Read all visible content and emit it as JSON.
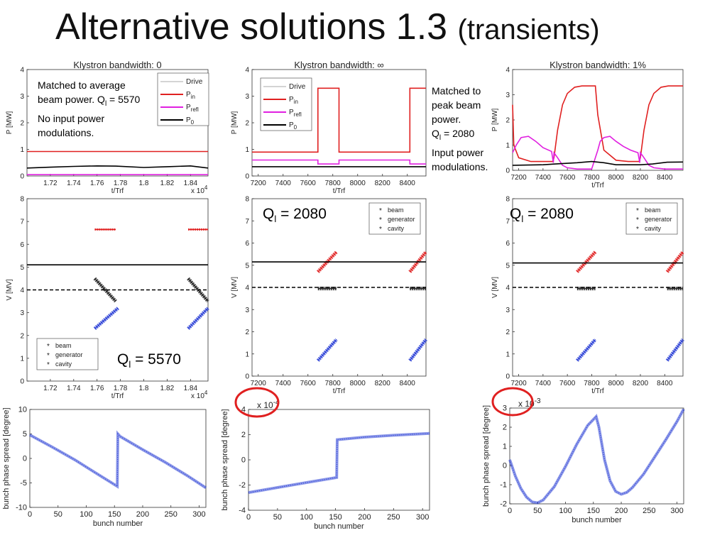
{
  "slide": {
    "title": "Alternative solutions 1.3",
    "subtitle": "(transients)"
  },
  "notes": {
    "left": {
      "l1": "Matched to average",
      "l2a": "beam power. Q",
      "l2sub": "l",
      "l2b": " = 5570",
      "l3": "No input power",
      "l4": "modulations."
    },
    "right": {
      "l1": "Matched to",
      "l2": "peak beam",
      "l3": "power.",
      "l4a": "Q",
      "l4sub": "l",
      "l4b": " = 2080",
      "l5": "Input power",
      "l6": "modulations."
    }
  },
  "ql_labels": [
    {
      "prefix": "Q",
      "sub": "l",
      "value": " = 5570"
    },
    {
      "prefix": "Q",
      "sub": "l",
      "value": " = 2080"
    },
    {
      "prefix": "Q",
      "sub": "l",
      "value": " = 2080"
    }
  ],
  "colors": {
    "drive": "#aaaaaa",
    "pin": "#e02020",
    "prefl": "#e020e0",
    "p0": "#000000",
    "beam": "#2a3fd6",
    "generator": "#e02020",
    "cavity": "#222222",
    "highlight": "#e02020"
  },
  "chart_data": [
    {
      "type": "line",
      "title": "Klystron bandwidth: 0",
      "xlabel": "t/Trf",
      "ylabel": "P [MW]",
      "xlim": [
        1.7,
        1.855
      ],
      "ylim": [
        0,
        4
      ],
      "xticks": [
        "1.72",
        "1.74",
        "1.76",
        "1.78",
        "1.8",
        "1.82",
        "1.84"
      ],
      "yticks": [
        "0",
        "1",
        "2",
        "3",
        "4"
      ],
      "xmultiplier": "x 10",
      "xmultiplier_exp": "4",
      "legend": [
        {
          "name": "Drive",
          "sub": ""
        },
        {
          "name": "P",
          "sub": "in"
        },
        {
          "name": "P",
          "sub": "refl"
        },
        {
          "name": "P",
          "sub": "0"
        }
      ],
      "series": [
        {
          "name": "Pin",
          "color": "#e02020",
          "x": [
            1.7,
            1.855
          ],
          "y": [
            0.92,
            0.92
          ]
        },
        {
          "name": "Prefl",
          "color": "#e020e0",
          "x": [
            1.7,
            1.855
          ],
          "y": [
            0.05,
            0.05
          ]
        },
        {
          "name": "P0",
          "color": "#000000",
          "x": [
            1.7,
            1.72,
            1.74,
            1.76,
            1.776,
            1.8,
            1.82,
            1.84,
            1.855
          ],
          "y": [
            0.3,
            0.33,
            0.36,
            0.38,
            0.37,
            0.32,
            0.35,
            0.38,
            0.3
          ]
        }
      ]
    },
    {
      "type": "line",
      "title": "Klystron bandwidth: ∞",
      "xlabel": "t/Trf",
      "ylabel": "P [MW]",
      "xlim": [
        7150,
        8550
      ],
      "ylim": [
        0,
        4
      ],
      "xticks": [
        "7200",
        "7400",
        "7600",
        "7800",
        "8000",
        "8200",
        "8400"
      ],
      "yticks": [
        "0",
        "1",
        "2",
        "3",
        "4"
      ],
      "legend": [
        {
          "name": "Drive",
          "sub": ""
        },
        {
          "name": "P",
          "sub": "in"
        },
        {
          "name": "P",
          "sub": "refl"
        },
        {
          "name": "P",
          "sub": "0"
        }
      ],
      "series": [
        {
          "name": "Pin",
          "color": "#e02020",
          "x": [
            7150,
            7680,
            7680,
            7850,
            7850,
            8420,
            8420,
            8550
          ],
          "y": [
            0.9,
            0.9,
            3.3,
            3.3,
            0.9,
            0.9,
            3.3,
            3.3
          ]
        },
        {
          "name": "Prefl",
          "color": "#e020e0",
          "x": [
            7150,
            7680,
            7680,
            7850,
            7850,
            8420,
            8420,
            8550
          ],
          "y": [
            0.6,
            0.6,
            0.45,
            0.45,
            0.6,
            0.6,
            0.45,
            0.45
          ]
        },
        {
          "name": "P0",
          "color": "#000000",
          "x": [
            7150,
            8550
          ],
          "y": [
            0.35,
            0.35
          ]
        }
      ]
    },
    {
      "type": "line",
      "title": "Klystron bandwidth: 1%",
      "xlabel": "t/Trf",
      "ylabel": "P [MW]",
      "xlim": [
        7150,
        8550
      ],
      "ylim": [
        0,
        4
      ],
      "xticks": [
        "7200",
        "7400",
        "7600",
        "7800",
        "8000",
        "8200",
        "8400"
      ],
      "yticks": [
        "0",
        "1",
        "2",
        "3",
        "4"
      ],
      "series": [
        {
          "name": "Pin",
          "color": "#e02020",
          "x": [
            7150,
            7160,
            7200,
            7300,
            7400,
            7480,
            7490,
            7520,
            7560,
            7600,
            7660,
            7720,
            7830,
            7850,
            7900,
            8000,
            8100,
            8190,
            8200,
            8230,
            8270,
            8310,
            8370,
            8430,
            8550
          ],
          "y": [
            2.6,
            1.0,
            0.5,
            0.35,
            0.35,
            0.35,
            0.5,
            1.6,
            2.6,
            3.05,
            3.3,
            3.35,
            3.35,
            2.2,
            0.8,
            0.4,
            0.35,
            0.35,
            0.5,
            1.6,
            2.6,
            3.05,
            3.3,
            3.35,
            3.35
          ]
        },
        {
          "name": "Prefl",
          "color": "#e020e0",
          "x": [
            7150,
            7180,
            7220,
            7280,
            7340,
            7400,
            7470,
            7485,
            7490,
            7520,
            7560,
            7600,
            7680,
            7800,
            7850,
            7870,
            7900,
            7950,
            8000,
            8060,
            8120,
            8180,
            8195,
            8200,
            8230,
            8270,
            8310,
            8400,
            8550
          ],
          "y": [
            0.7,
            1.0,
            1.3,
            1.35,
            1.15,
            0.9,
            0.75,
            0.3,
            0.7,
            0.5,
            0.2,
            0.1,
            0.05,
            0.05,
            0.8,
            1.15,
            1.3,
            1.35,
            1.15,
            0.95,
            0.8,
            0.7,
            0.3,
            0.7,
            0.5,
            0.2,
            0.1,
            0.05,
            0.05
          ]
        },
        {
          "name": "P0",
          "color": "#000000",
          "x": [
            7150,
            7400,
            7500,
            7680,
            7800,
            7900,
            8000,
            8200,
            8300,
            8420,
            8550
          ],
          "y": [
            0.2,
            0.22,
            0.25,
            0.3,
            0.35,
            0.3,
            0.22,
            0.22,
            0.25,
            0.32,
            0.33
          ]
        }
      ]
    },
    {
      "type": "scatter",
      "title": "",
      "xlabel": "t/Trf",
      "ylabel": "V [MV]",
      "xlim": [
        1.7,
        1.855
      ],
      "ylim": [
        0,
        8
      ],
      "xticks": [
        "1.72",
        "1.74",
        "1.76",
        "1.78",
        "1.8",
        "1.82",
        "1.84"
      ],
      "yticks": [
        "0",
        "1",
        "2",
        "3",
        "4",
        "5",
        "6",
        "7",
        "8"
      ],
      "xmultiplier": "x 10",
      "xmultiplier_exp": "4",
      "legend": [
        "beam",
        "generator",
        "cavity"
      ],
      "series": [
        {
          "name": "beam",
          "color": "#2a3fd6",
          "segments": [
            [
              [
                1.758,
                2.3
              ],
              [
                1.778,
                3.2
              ]
            ],
            [
              [
                1.838,
                2.3
              ],
              [
                1.855,
                3.2
              ]
            ]
          ]
        },
        {
          "name": "generator",
          "color": "#e02020",
          "segments": [
            [
              [
                1.758,
                6.65
              ],
              [
                1.776,
                6.65
              ]
            ],
            [
              [
                1.838,
                6.65
              ],
              [
                1.855,
                6.65
              ]
            ]
          ]
        },
        {
          "name": "cavity",
          "color": "#222222",
          "segments": [
            [
              [
                1.758,
                4.5
              ],
              [
                1.776,
                3.5
              ]
            ],
            [
              [
                1.838,
                4.5
              ],
              [
                1.855,
                3.5
              ]
            ]
          ]
        },
        {
          "name": "ref_solid",
          "color": "#000000",
          "x": [
            1.7,
            1.855
          ],
          "y": [
            5.1,
            5.1
          ]
        },
        {
          "name": "ref_dashed",
          "color": "#000000",
          "x": [
            1.7,
            1.855
          ],
          "y": [
            4.0,
            4.0
          ]
        }
      ]
    },
    {
      "type": "scatter",
      "title": "",
      "xlabel": "t/Trf",
      "ylabel": "V [MV]",
      "xlim": [
        7150,
        8550
      ],
      "ylim": [
        0,
        8
      ],
      "xticks": [
        "7200",
        "7400",
        "7600",
        "7800",
        "8000",
        "8200",
        "8400"
      ],
      "yticks": [
        "0",
        "1",
        "2",
        "3",
        "4",
        "5",
        "6",
        "7",
        "8"
      ],
      "legend": [
        "beam",
        "generator",
        "cavity"
      ],
      "series": [
        {
          "name": "beam",
          "color": "#2a3fd6",
          "segments": [
            [
              [
                7680,
                0.7
              ],
              [
                7830,
                1.65
              ]
            ],
            [
              [
                8420,
                0.7
              ],
              [
                8550,
                1.65
              ]
            ]
          ]
        },
        {
          "name": "generator",
          "color": "#e02020",
          "segments": [
            [
              [
                7680,
                4.7
              ],
              [
                7830,
                5.6
              ]
            ],
            [
              [
                8420,
                4.7
              ],
              [
                8550,
                5.6
              ]
            ]
          ]
        },
        {
          "name": "cavity",
          "color": "#222222",
          "segments": [
            [
              [
                7680,
                3.95
              ],
              [
                7830,
                3.95
              ]
            ],
            [
              [
                8420,
                3.95
              ],
              [
                8550,
                3.95
              ]
            ]
          ]
        },
        {
          "name": "ref_solid",
          "color": "#000000",
          "x": [
            7150,
            8550
          ],
          "y": [
            5.15,
            5.15
          ]
        },
        {
          "name": "ref_dashed",
          "color": "#000000",
          "x": [
            7150,
            8550
          ],
          "y": [
            4.0,
            4.0
          ]
        }
      ]
    },
    {
      "type": "scatter",
      "title": "",
      "xlabel": "t/Trf",
      "ylabel": "V [MV]",
      "xlim": [
        7150,
        8550
      ],
      "ylim": [
        0,
        8
      ],
      "xticks": [
        "7200",
        "7400",
        "7600",
        "7800",
        "8000",
        "8200",
        "8400"
      ],
      "yticks": [
        "0",
        "1",
        "2",
        "3",
        "4",
        "5",
        "6",
        "7",
        "8"
      ],
      "legend": [
        "beam",
        "generator",
        "cavity"
      ],
      "series": [
        {
          "name": "beam",
          "color": "#2a3fd6",
          "segments": [
            [
              [
                7680,
                0.7
              ],
              [
                7830,
                1.65
              ]
            ],
            [
              [
                8420,
                0.7
              ],
              [
                8550,
                1.65
              ]
            ]
          ]
        },
        {
          "name": "generator",
          "color": "#e02020",
          "segments": [
            [
              [
                7680,
                4.7
              ],
              [
                7830,
                5.6
              ]
            ],
            [
              [
                8420,
                4.7
              ],
              [
                8550,
                5.6
              ]
            ]
          ]
        },
        {
          "name": "cavity",
          "color": "#222222",
          "segments": [
            [
              [
                7680,
                3.95
              ],
              [
                7830,
                3.95
              ]
            ],
            [
              [
                8420,
                3.95
              ],
              [
                8550,
                3.95
              ]
            ]
          ]
        },
        {
          "name": "ref_solid",
          "color": "#000000",
          "x": [
            7150,
            8550
          ],
          "y": [
            5.1,
            5.1
          ]
        },
        {
          "name": "ref_dashed",
          "color": "#000000",
          "x": [
            7150,
            8550
          ],
          "y": [
            4.0,
            4.0
          ]
        }
      ]
    },
    {
      "type": "scatter",
      "title": "",
      "xlabel": "bunch number",
      "ylabel": "bunch phase spread [degree]",
      "xlim": [
        0,
        312
      ],
      "ylim": [
        -10,
        10
      ],
      "xticks": [
        "0",
        "50",
        "100",
        "150",
        "200",
        "250",
        "300"
      ],
      "yticks": [
        "-10",
        "-5",
        "0",
        "5",
        "10"
      ],
      "series": [
        {
          "name": "phase",
          "color": "#2a3fd6",
          "x": [
            0,
            40,
            80,
            120,
            155,
            156,
            160,
            200,
            240,
            280,
            312
          ],
          "y": [
            4.8,
            2.3,
            -0.3,
            -3.2,
            -5.7,
            5.0,
            4.5,
            1.8,
            -0.8,
            -3.6,
            -6.0
          ]
        }
      ]
    },
    {
      "type": "scatter",
      "title": "",
      "xlabel": "bunch number",
      "ylabel": "bunch phase spread [degree]",
      "xlim": [
        0,
        312
      ],
      "ylim": [
        -4,
        4
      ],
      "xticks": [
        "0",
        "50",
        "100",
        "150",
        "200",
        "250",
        "300"
      ],
      "yticks": [
        "-4",
        "-2",
        "0",
        "2",
        "4"
      ],
      "ymultiplier": "x 10",
      "ymultiplier_exp": "-4",
      "series": [
        {
          "name": "phase",
          "color": "#2a3fd6",
          "x": [
            0,
            50,
            100,
            152,
            153,
            200,
            250,
            312
          ],
          "y": [
            -2.6,
            -2.2,
            -1.8,
            -1.4,
            1.6,
            1.8,
            1.95,
            2.1
          ]
        }
      ]
    },
    {
      "type": "scatter",
      "title": "",
      "xlabel": "bunch number",
      "ylabel": "bunch phase spread [degree]",
      "xlim": [
        0,
        312
      ],
      "ylim": [
        -2,
        3
      ],
      "xticks": [
        "0",
        "50",
        "100",
        "150",
        "200",
        "250",
        "300"
      ],
      "yticks": [
        "-2",
        "-1",
        "0",
        "1",
        "2",
        "3"
      ],
      "ymultiplier": "x 10",
      "ymultiplier_exp": "-3",
      "series": [
        {
          "name": "phase",
          "color": "#2a3fd6",
          "x": [
            0,
            10,
            20,
            30,
            40,
            50,
            60,
            80,
            100,
            120,
            140,
            155,
            160,
            170,
            180,
            190,
            200,
            210,
            220,
            240,
            260,
            280,
            300,
            312
          ],
          "y": [
            0.3,
            -0.55,
            -1.2,
            -1.65,
            -1.9,
            -1.95,
            -1.8,
            -1.1,
            -0.05,
            1.1,
            2.1,
            2.55,
            2.0,
            0.3,
            -0.8,
            -1.35,
            -1.5,
            -1.4,
            -1.15,
            -0.45,
            0.45,
            1.35,
            2.3,
            2.95
          ]
        }
      ]
    }
  ]
}
